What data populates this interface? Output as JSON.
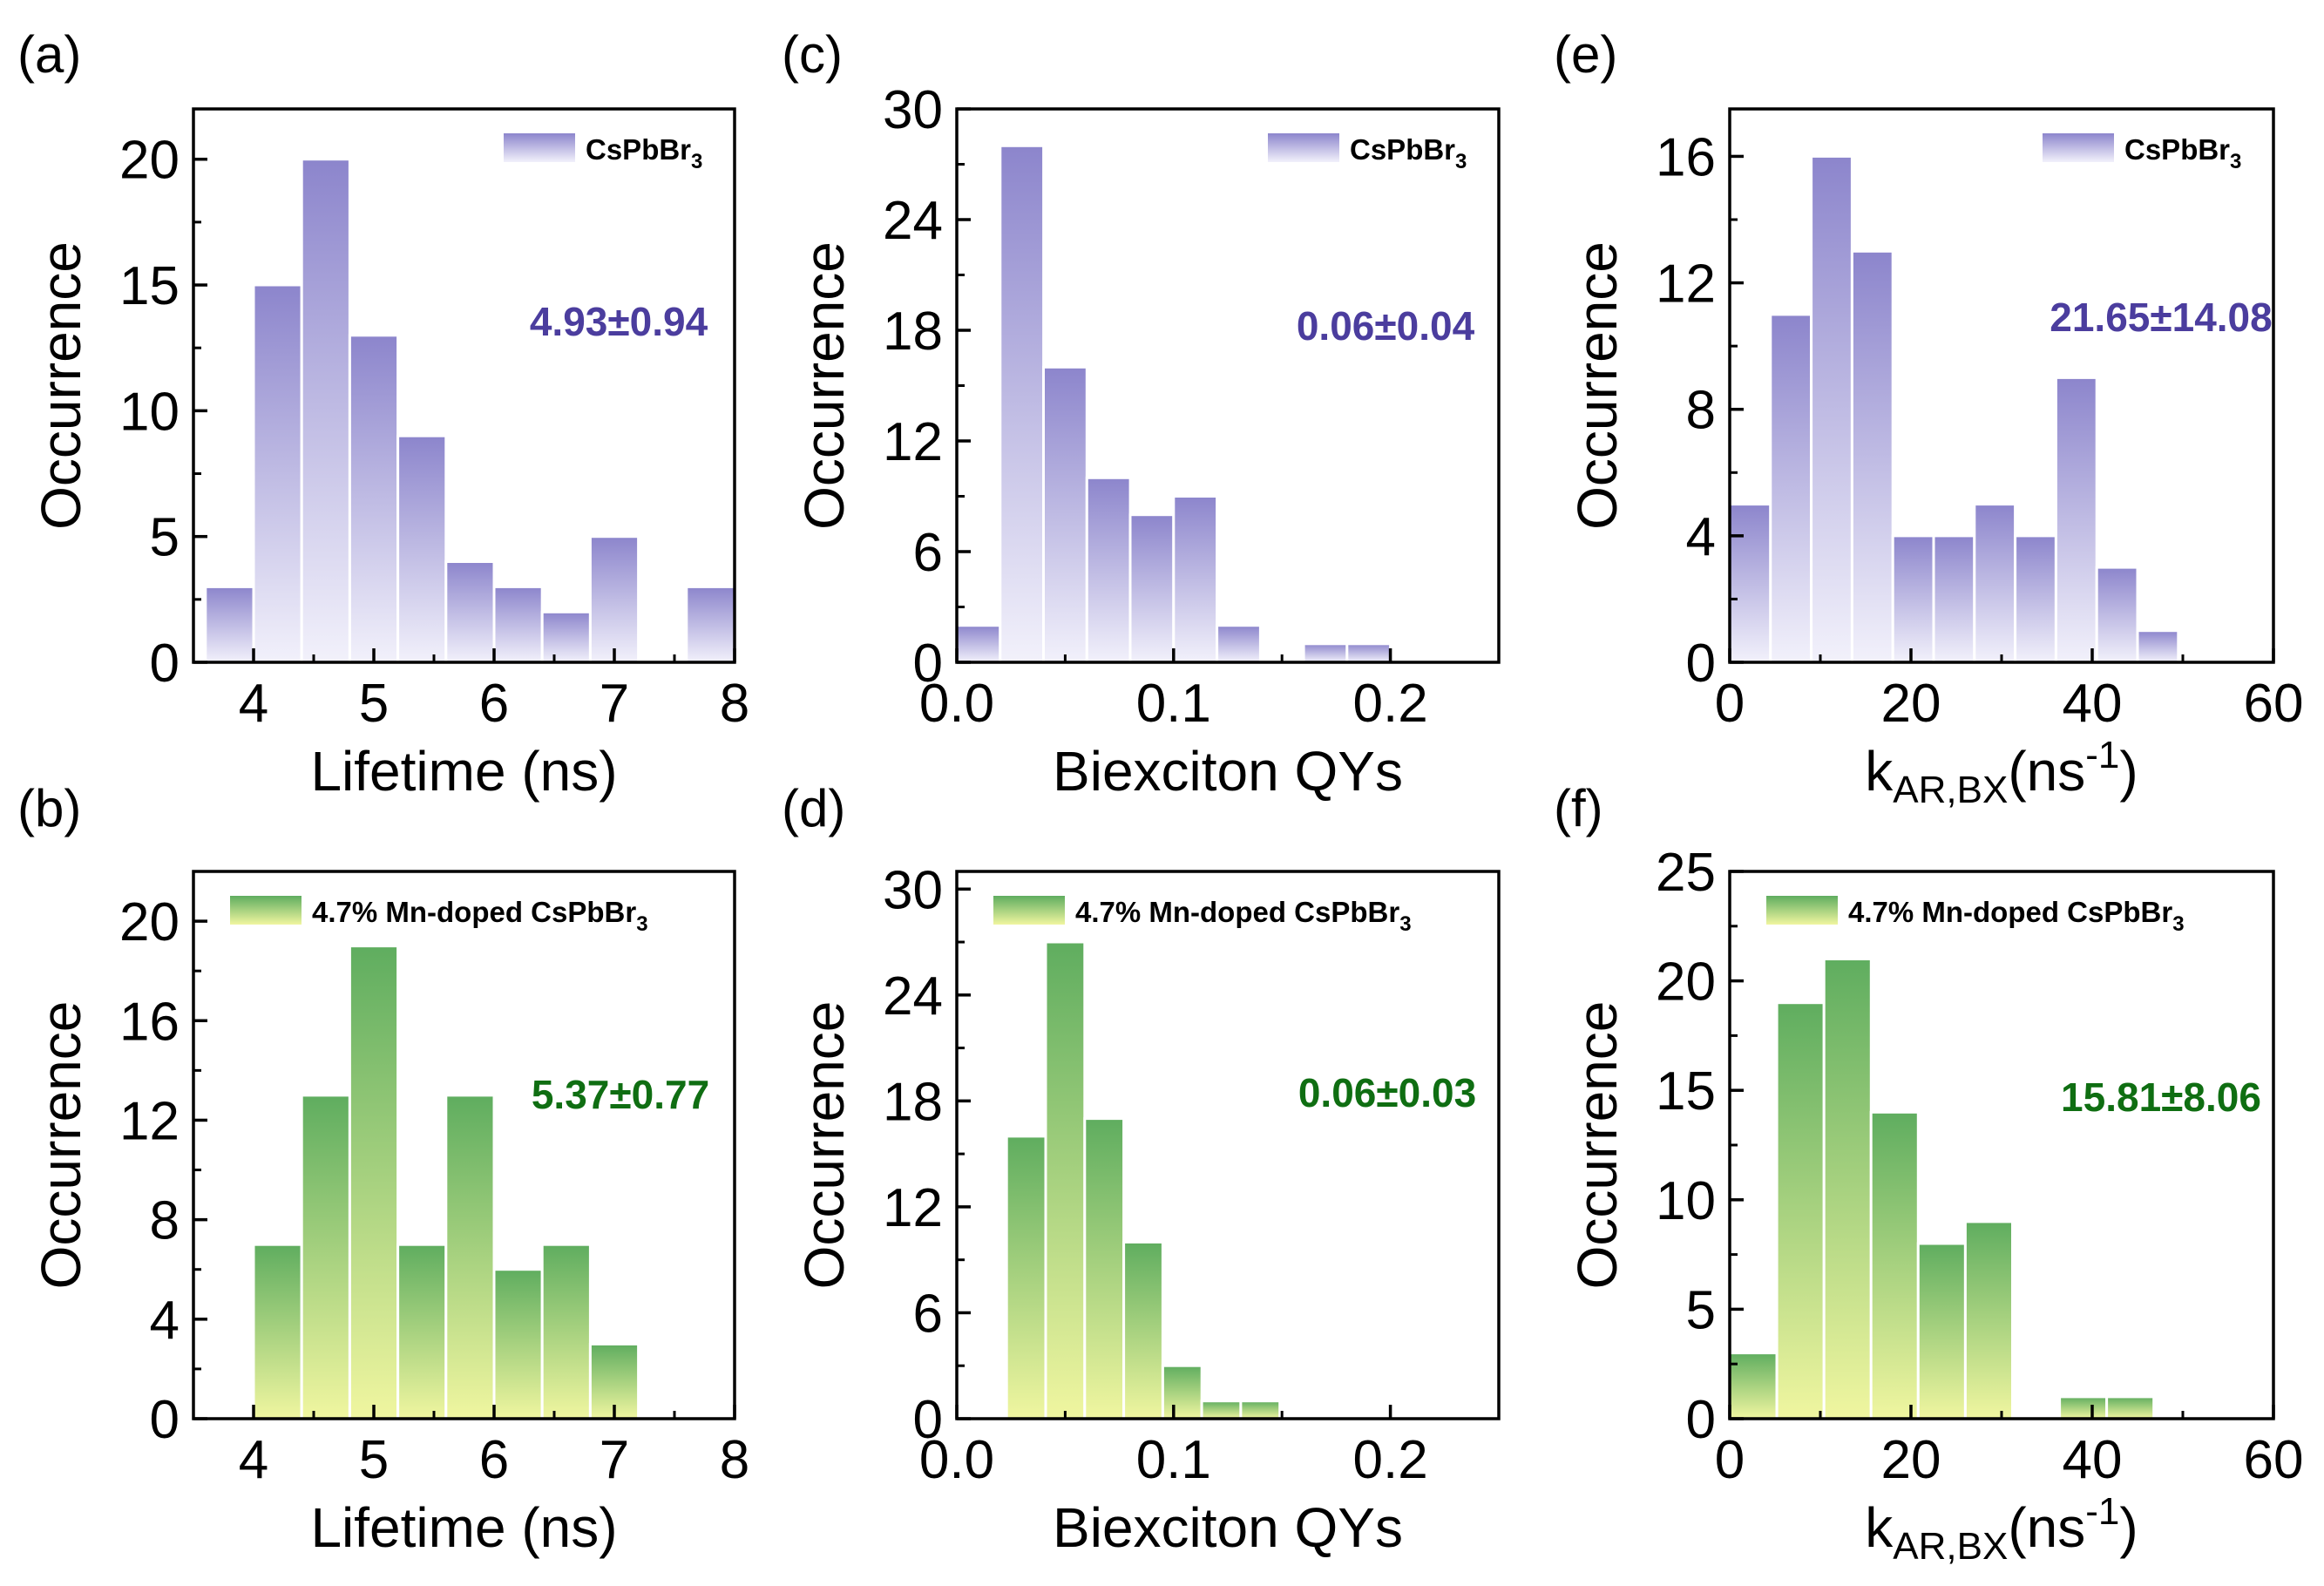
{
  "colors": {
    "purple_top": "#8c85cc",
    "purple_bottom": "#f2f1fb",
    "purple_stat": "#4b3d9e",
    "green_top": "#5fad5f",
    "green_bottom": "#f0f6a0",
    "green_stat": "#0f6e12",
    "bar_edge": "#ffffff",
    "axis": "#000000"
  },
  "chart_data": [
    {
      "panel": "(a)",
      "type": "bar",
      "theme": "purple",
      "xlabel": "Lifetime (ns)",
      "ylabel": "Occurrence",
      "xlim": [
        3.5,
        8
      ],
      "ylim": [
        0,
        22
      ],
      "xticks": [
        4,
        5,
        6,
        7,
        8
      ],
      "xtick_labels": [
        "4",
        "5",
        "6",
        "7",
        "8"
      ],
      "yticks": [
        0,
        5,
        10,
        15,
        20
      ],
      "ytick_labels": [
        "0",
        "5",
        "10",
        "15",
        "20"
      ],
      "bin_width": 0.4,
      "bins_start": [
        3.6,
        4.0,
        4.4,
        4.8,
        5.2,
        5.6,
        6.0,
        6.4,
        6.8,
        7.2,
        7.6
      ],
      "values": [
        3,
        15,
        20,
        13,
        9,
        4,
        3,
        2,
        5,
        0,
        3
      ],
      "legend": "CsPbBr",
      "legend_sub": "3",
      "stat": "4.93±0.94"
    },
    {
      "panel": "(c)",
      "type": "bar",
      "theme": "purple",
      "xlabel": "Biexciton QYs",
      "ylabel": "Occurrence",
      "xlim": [
        0,
        0.25
      ],
      "ylim": [
        0,
        30
      ],
      "xticks": [
        0,
        0.1,
        0.2
      ],
      "xtick_labels": [
        "0.0",
        "0.1",
        "0.2"
      ],
      "yticks": [
        0,
        6,
        12,
        18,
        24,
        30
      ],
      "ytick_labels": [
        "0",
        "6",
        "12",
        "18",
        "24",
        "30"
      ],
      "bin_width": 0.02,
      "bins_start": [
        0.0,
        0.02,
        0.04,
        0.06,
        0.08,
        0.1,
        0.12,
        0.14,
        0.16,
        0.18
      ],
      "values": [
        2,
        28,
        16,
        10,
        8,
        9,
        2,
        0,
        1,
        1
      ],
      "legend": "CsPbBr",
      "legend_sub": "3",
      "stat": "0.06±0.04"
    },
    {
      "panel": "(e)",
      "type": "bar",
      "theme": "purple",
      "xlabel": "k",
      "xlabel_sub": "AR,BX",
      "xlabel_suffix": "(ns",
      "xlabel_sup": "-1",
      "xlabel_close": ")",
      "ylabel": "Occurrence",
      "xlim": [
        0,
        60
      ],
      "ylim": [
        0,
        17.5
      ],
      "xticks": [
        0,
        20,
        40,
        60
      ],
      "xtick_labels": [
        "0",
        "20",
        "40",
        "60"
      ],
      "yticks": [
        0,
        4,
        8,
        12,
        16
      ],
      "ytick_labels": [
        "0",
        "4",
        "8",
        "12",
        "16"
      ],
      "bin_width": 4.5,
      "bins_start": [
        0,
        4.5,
        9,
        13.5,
        18,
        22.5,
        27,
        31.5,
        36,
        40.5,
        45,
        49.5
      ],
      "values": [
        5,
        11,
        16,
        13,
        4,
        4,
        5,
        4,
        9,
        3,
        1,
        0
      ],
      "legend": "CsPbBr",
      "legend_sub": "3",
      "stat": "21.65±14.08"
    },
    {
      "panel": "(b)",
      "type": "bar",
      "theme": "green",
      "xlabel": "Lifetime (ns)",
      "ylabel": "Occurrence",
      "xlim": [
        3.5,
        8
      ],
      "ylim": [
        0,
        22
      ],
      "xticks": [
        4,
        5,
        6,
        7,
        8
      ],
      "xtick_labels": [
        "4",
        "5",
        "6",
        "7",
        "8"
      ],
      "yticks": [
        0,
        4,
        8,
        12,
        16,
        20
      ],
      "ytick_labels": [
        "0",
        "4",
        "8",
        "12",
        "16",
        "20"
      ],
      "bin_width": 0.4,
      "bins_start": [
        4.0,
        4.4,
        4.8,
        5.2,
        5.6,
        6.0,
        6.4,
        6.8
      ],
      "values": [
        7,
        13,
        19,
        7,
        13,
        6,
        7,
        3
      ],
      "legend": "4.7% Mn-doped CsPbBr",
      "legend_sub": "3",
      "stat": "5.37±0.77"
    },
    {
      "panel": "(d)",
      "type": "bar",
      "theme": "green",
      "xlabel": "Biexciton QYs",
      "ylabel": "Occurrence",
      "xlim": [
        0,
        0.25
      ],
      "ylim": [
        0,
        31
      ],
      "xticks": [
        0,
        0.1,
        0.2
      ],
      "xtick_labels": [
        "0.0",
        "0.1",
        "0.2"
      ],
      "yticks": [
        0,
        6,
        12,
        18,
        24,
        30
      ],
      "ytick_labels": [
        "0",
        "6",
        "12",
        "18",
        "24",
        "30"
      ],
      "bin_width": 0.018,
      "bins_start": [
        0.023,
        0.041,
        0.059,
        0.077,
        0.095,
        0.113,
        0.131
      ],
      "values": [
        16,
        27,
        17,
        10,
        3,
        1,
        1
      ],
      "legend": "4.7% Mn-doped CsPbBr",
      "legend_sub": "3",
      "stat": "0.06±0.03"
    },
    {
      "panel": "(f)",
      "type": "bar",
      "theme": "green",
      "xlabel": "k",
      "xlabel_sub": "AR,BX",
      "xlabel_suffix": "(ns",
      "xlabel_sup": "-1",
      "xlabel_close": ")",
      "ylabel": "Occurrence",
      "xlim": [
        0,
        60
      ],
      "ylim": [
        0,
        25
      ],
      "xticks": [
        0,
        20,
        40,
        60
      ],
      "xtick_labels": [
        "0",
        "20",
        "40",
        "60"
      ],
      "yticks": [
        0,
        5,
        10,
        15,
        20,
        25
      ],
      "ytick_labels": [
        "0",
        "5",
        "10",
        "15",
        "20",
        "25"
      ],
      "bin_width": 5.2,
      "bins_start": [
        0,
        5.2,
        10.4,
        15.6,
        20.8,
        26.0,
        31.2,
        36.4,
        41.6
      ],
      "values": [
        3,
        19,
        21,
        14,
        8,
        9,
        0,
        1,
        1
      ],
      "legend": "4.7% Mn-doped CsPbBr",
      "legend_sub": "3",
      "stat": "15.81±8.06"
    }
  ]
}
